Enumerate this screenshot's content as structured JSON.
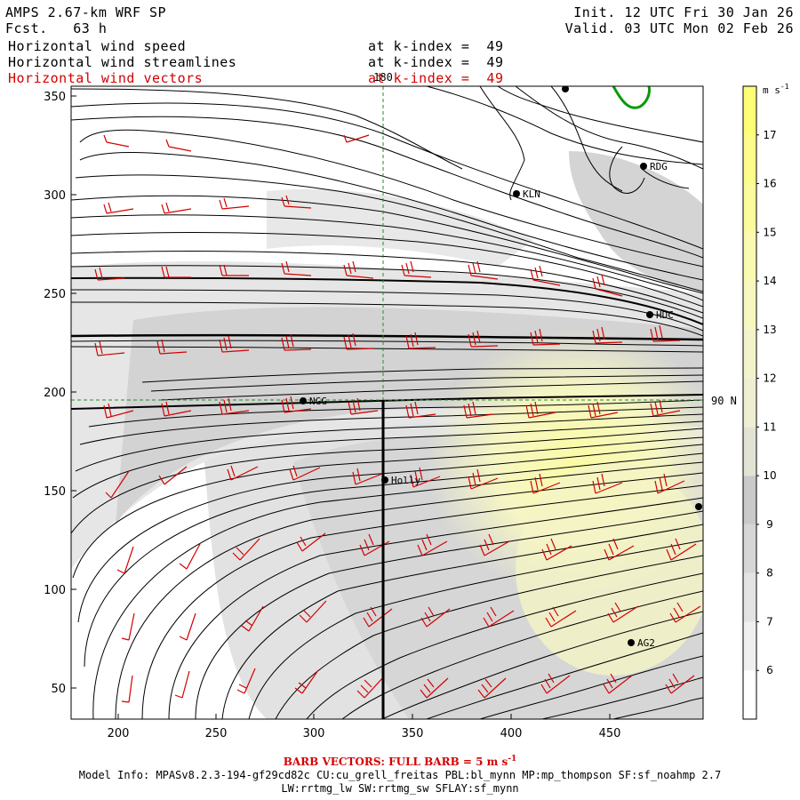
{
  "header": {
    "model_title": "AMPS 2.67-km WRF SP",
    "forecast": "Fcst.   63 h",
    "init": "Init. 12 UTC Fri 30 Jan 26",
    "valid": "Valid. 03 UTC Mon 02 Feb 26",
    "fields": [
      {
        "name": "Horizontal wind speed",
        "level": "at k-index =  49",
        "color": "#000000"
      },
      {
        "name": "Horizontal wind streamlines",
        "level": "at k-index =  49",
        "color": "#000000"
      },
      {
        "name": "Horizontal wind vectors",
        "level": "at k-index =  49",
        "color": "#d40000"
      }
    ]
  },
  "map": {
    "x_ticks": [
      "200",
      "250",
      "300",
      "350",
      "400",
      "450"
    ],
    "y_ticks": [
      "50",
      "100",
      "150",
      "200",
      "250",
      "300",
      "350"
    ],
    "lon_label": "180",
    "lat_label": "90 N",
    "stations": [
      {
        "id": "KLN",
        "label": "KLN"
      },
      {
        "id": "RDG",
        "label": "RDG"
      },
      {
        "id": "HDC",
        "label": "HDC"
      },
      {
        "id": "NGG",
        "label": "NGG"
      },
      {
        "id": "HOLLY",
        "label": "Holly"
      },
      {
        "id": "AG2",
        "label": "AG2"
      },
      {
        "id": "TOP",
        "label": ""
      },
      {
        "id": "EAST",
        "label": ""
      }
    ]
  },
  "colorbar": {
    "units": "m s",
    "units_exp": "-1",
    "ticks": [
      "6",
      "7",
      "8",
      "9",
      "10",
      "11",
      "12",
      "13",
      "14",
      "15",
      "16",
      "17"
    ],
    "colors": [
      "#ffffff",
      "#efefef",
      "#e3e3e3",
      "#d6d6d6",
      "#c9c9c9",
      "#e3e3d4",
      "#eeeed3",
      "#f3f3cb",
      "#f7f7c0",
      "#f9f9b0",
      "#fbfb9e",
      "#fcfc8a",
      "#fdfd76"
    ]
  },
  "footer": {
    "barb_prefix": "BARB VECTORS:  FULL BARB = 5 m s",
    "barb_exp": "-1",
    "model_info": "Model Info: MPASv8.2.3-194-gf29cd82c CU:cu_grell_freitas PBL:bl_mynn MP:mp_thompson SF:sf_noahmp 2.7",
    "model_info2": "LW:rrtmg_lw SW:rrtmg_sw SFLAY:sf_mynn"
  }
}
